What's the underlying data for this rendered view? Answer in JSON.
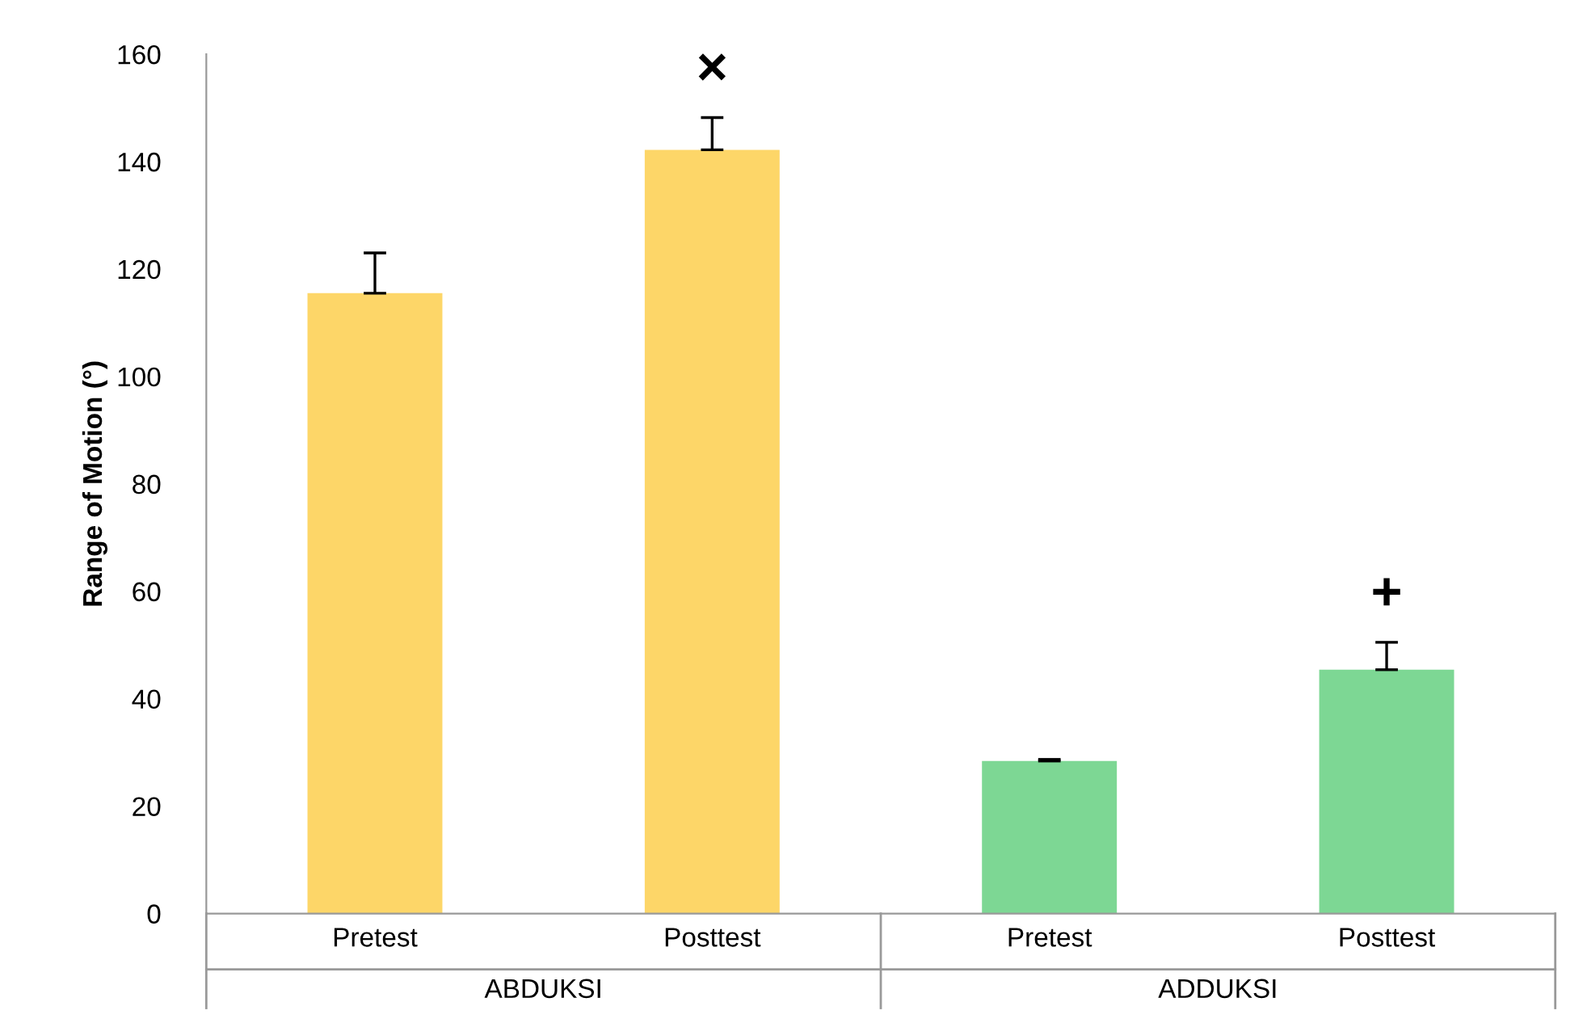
{
  "chart_data": {
    "type": "bar",
    "ylabel": "Range of Motion (°)",
    "categories": [
      "Pretest",
      "Posttest",
      "Pretest",
      "Posttest"
    ],
    "values": [
      115.5,
      142.2,
      28.4,
      45.4
    ],
    "errors": [
      [
        115.5,
        123
      ],
      [
        142.2,
        148.2
      ],
      [
        28.4,
        28.7
      ],
      [
        45.4,
        50.5
      ]
    ],
    "colors": [
      "#fdd668",
      "#fdd668",
      "#7dd794",
      "#7dd794"
    ],
    "ylim": [
      0,
      160
    ],
    "yticks": [
      0,
      20,
      40,
      60,
      80,
      100,
      120,
      140,
      160
    ],
    "grid": false,
    "annotations": [
      "ABDUKSI",
      "ADDUKSI",
      "×",
      "+"
    ]
  }
}
